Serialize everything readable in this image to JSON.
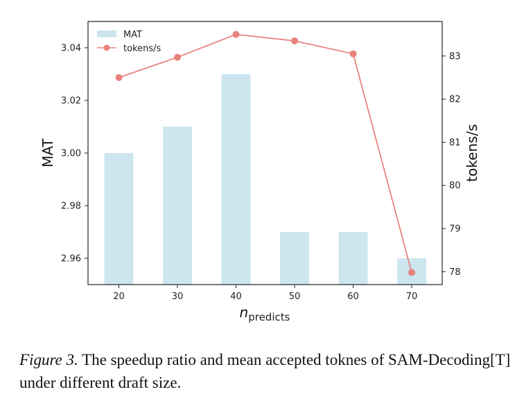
{
  "chart_data": {
    "type": "bar+line",
    "xlabel_base": "n",
    "xlabel_sub": "predicts",
    "categories": [
      "20",
      "30",
      "40",
      "50",
      "60",
      "70"
    ],
    "series": [
      {
        "name": "MAT",
        "type": "bar",
        "axis": "left",
        "color": "#cde5ef",
        "values": [
          3.0,
          3.01,
          3.03,
          2.97,
          2.97,
          2.96
        ]
      },
      {
        "name": "tokens/s",
        "type": "line",
        "axis": "right",
        "color": "#e8837c",
        "values": [
          82.5,
          82.97,
          83.5,
          83.35,
          83.05,
          77.98
        ]
      }
    ],
    "ylabel_left": "MAT",
    "ylim_left": [
      2.95,
      3.05
    ],
    "yticks_left": [
      "2.96",
      "2.98",
      "3.00",
      "3.02",
      "3.04"
    ],
    "ylabel_right": "tokens/s",
    "ylim_right": [
      77.7,
      83.8
    ],
    "yticks_right": [
      "78",
      "79",
      "80",
      "81",
      "82",
      "83"
    ],
    "legend_position": "top-left",
    "grid": false
  },
  "caption": {
    "figure_label": "Figure 3.",
    "text": " The speedup ratio and mean accepted toknes of SAM-Decoding[T] under different draft size."
  }
}
